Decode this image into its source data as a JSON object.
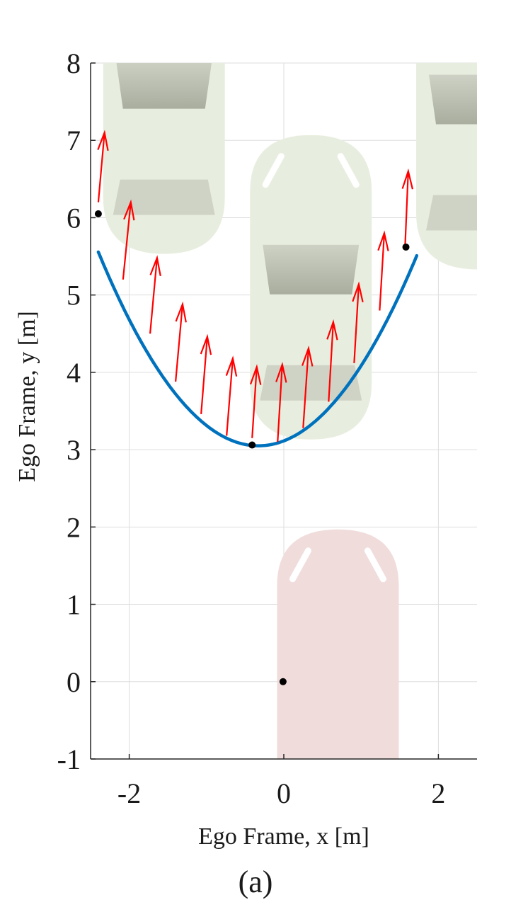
{
  "chart_data": {
    "type": "line",
    "xlabel": "Ego Frame, x   [m]",
    "ylabel": "Ego Frame, y   [m]",
    "xlim": [
      -2.5,
      2.5
    ],
    "ylim": [
      -1,
      8
    ],
    "xticks": [
      "-2",
      "0",
      "2"
    ],
    "yticks": [
      "-1",
      "0",
      "1",
      "2",
      "3",
      "4",
      "5",
      "6",
      "7",
      "8"
    ],
    "grid": true,
    "series": [
      {
        "color": "#0072bd",
        "curve": {
          "x_min": -2.4,
          "x_max": 1.72,
          "vertex_x": -0.33,
          "vertex_y": 3.05,
          "a": 0.585
        }
      }
    ],
    "arrows": {
      "color": "#ff0000",
      "points": [
        {
          "x": -2.4,
          "y": 6.2,
          "dx": 0.08,
          "dy": 0.9
        },
        {
          "x": -2.08,
          "y": 5.2,
          "dx": 0.1,
          "dy": 1.0
        },
        {
          "x": -1.73,
          "y": 4.5,
          "dx": 0.09,
          "dy": 0.98
        },
        {
          "x": -1.4,
          "y": 3.88,
          "dx": 0.09,
          "dy": 1.0
        },
        {
          "x": -1.07,
          "y": 3.46,
          "dx": 0.08,
          "dy": 1.0
        },
        {
          "x": -0.74,
          "y": 3.18,
          "dx": 0.08,
          "dy": 1.0
        },
        {
          "x": -0.41,
          "y": 3.15,
          "dx": 0.06,
          "dy": 0.92
        },
        {
          "x": -0.08,
          "y": 3.1,
          "dx": 0.06,
          "dy": 1.0
        },
        {
          "x": 0.25,
          "y": 3.28,
          "dx": 0.07,
          "dy": 1.03
        },
        {
          "x": 0.58,
          "y": 3.62,
          "dx": 0.06,
          "dy": 1.03
        },
        {
          "x": 0.91,
          "y": 4.12,
          "dx": 0.06,
          "dy": 1.02
        },
        {
          "x": 1.24,
          "y": 4.8,
          "dx": 0.06,
          "dy": 1.0
        },
        {
          "x": 1.57,
          "y": 5.65,
          "dx": 0.04,
          "dy": 0.95
        }
      ]
    },
    "markers": {
      "color": "#000000",
      "points": [
        {
          "x": -2.4,
          "y": 6.05
        },
        {
          "x": -0.41,
          "y": 3.06
        },
        {
          "x": 1.58,
          "y": 5.62
        },
        {
          "x": -0.01,
          "y": 0.0
        }
      ]
    },
    "vehicles": [
      {
        "color": "#e8eedf",
        "x": -1.55,
        "y": 7.5
      },
      {
        "color": "#e8eedf",
        "x": 0.35,
        "y": 5.1
      },
      {
        "color": "#e8eedf",
        "x": 2.5,
        "y": 7.3
      },
      {
        "color": "#f1dcdc",
        "x": 0.7,
        "y": 0.0
      }
    ]
  },
  "caption": "(a)"
}
